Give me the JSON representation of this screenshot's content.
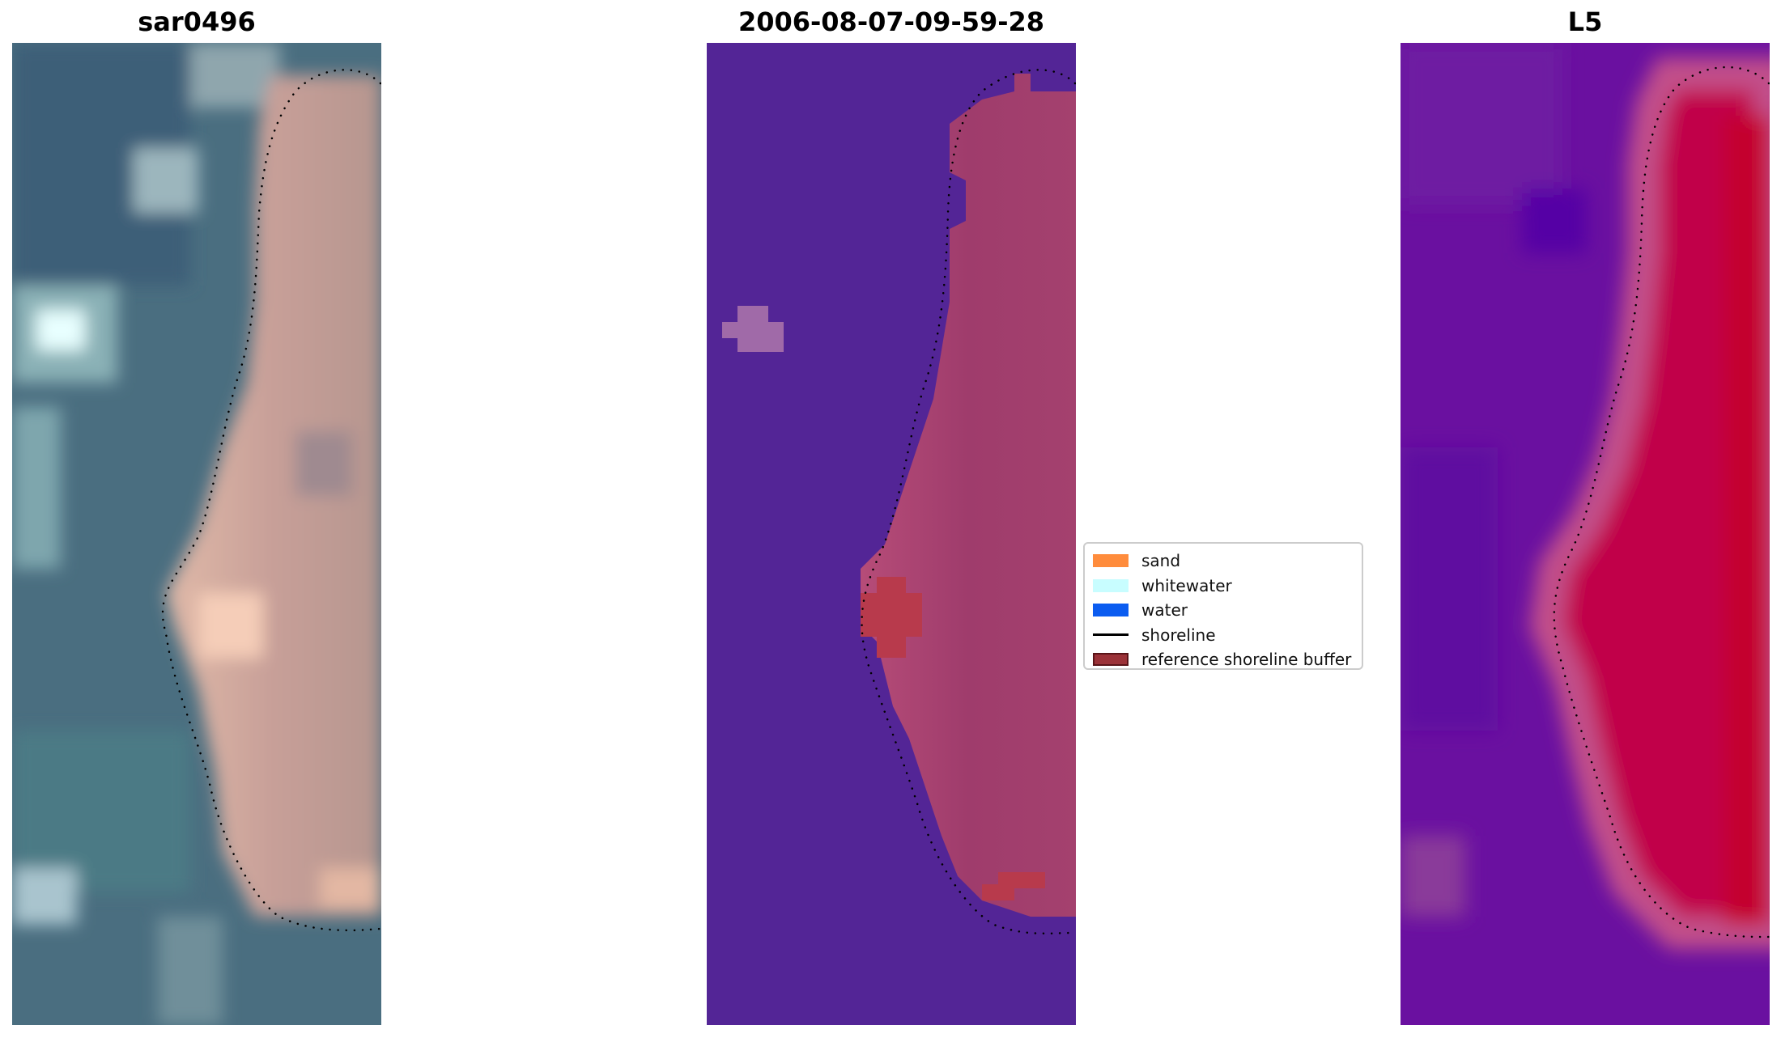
{
  "panels": [
    {
      "id": "rgb",
      "title": "sar0496"
    },
    {
      "id": "classified",
      "title": "2006-08-07-09-59-28"
    },
    {
      "id": "index",
      "title": "L5"
    }
  ],
  "legend": {
    "items": [
      {
        "label": "sand",
        "color": "#ff8c3c",
        "type": "patch"
      },
      {
        "label": "whitewater",
        "color": "#c8fdff",
        "type": "patch"
      },
      {
        "label": "water",
        "color": "#0b5cf0",
        "type": "patch"
      },
      {
        "label": "shoreline",
        "color": "#000000",
        "type": "line"
      },
      {
        "label": "reference shoreline buffer",
        "color": "#9b3238",
        "type": "patch-outline"
      }
    ]
  },
  "colors": {
    "rgb_water": "#4b6f82",
    "rgb_sand": "#c9a699",
    "classified_water": "#532596",
    "classified_sand": "#a33f6e",
    "index_water": "#6a0fa0",
    "index_sand": "#c1003b"
  }
}
